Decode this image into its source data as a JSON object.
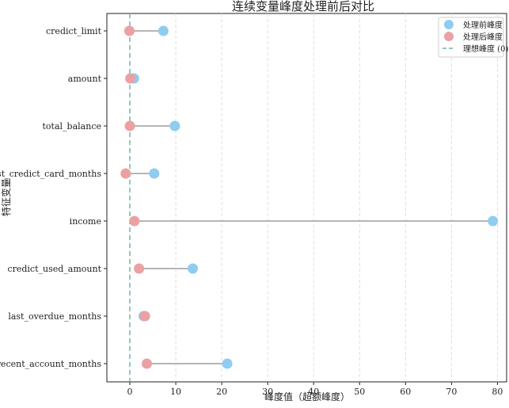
{
  "chart_data": {
    "type": "dumbbell",
    "title": "连续变量峰度处理前后对比",
    "xlabel": "峰度值（超额峰度）",
    "ylabel": "特征变量",
    "xlim": [
      -5,
      82
    ],
    "xticks": [
      0,
      10,
      20,
      30,
      40,
      50,
      60,
      70,
      80
    ],
    "grid": "x-dashed",
    "legend_position": "top-right",
    "categories": [
      "credict_limit",
      "amount",
      "total_balance",
      "last_credict_card_months",
      "income",
      "credict_used_amount",
      "last_overdue_months",
      "recent_account_months"
    ],
    "series": [
      {
        "name": "处理前峰度",
        "color": "#8ecdf0",
        "values": [
          7.3,
          0.9,
          9.8,
          5.3,
          79.0,
          13.7,
          3.0,
          21.2
        ]
      },
      {
        "name": "处理后峰度",
        "color": "#eba1a3",
        "values": [
          -0.1,
          0.1,
          0.0,
          -0.9,
          1.0,
          2.0,
          3.3,
          3.7
        ]
      }
    ],
    "reference_line": {
      "name": "理想峰度 (0)",
      "value": 0,
      "color": "#6bb7a8"
    },
    "connector_color": "#b5b5b5"
  }
}
